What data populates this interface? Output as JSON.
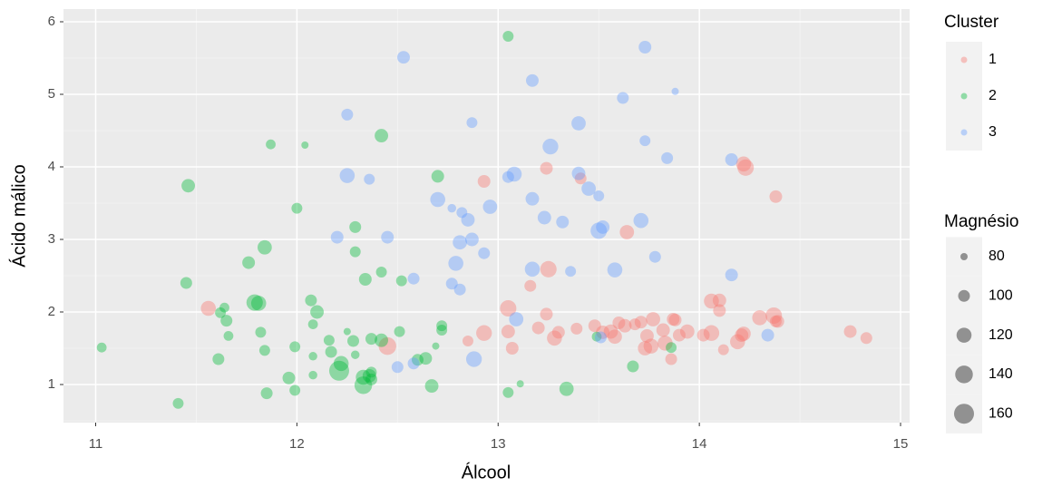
{
  "chart_data": {
    "type": "scatter",
    "xlabel": "Álcool",
    "ylabel": "Ácido málico",
    "xlim": [
      10.84,
      15.045
    ],
    "ylim": [
      0.475,
      6.175
    ],
    "xticks": [
      11,
      12,
      13,
      14,
      15
    ],
    "yticks": [
      1,
      2,
      3,
      4,
      5,
      6
    ],
    "grid": true,
    "opacity": 0.4,
    "legend_title": "Cluster",
    "size_legend": {
      "title": "Magnésio",
      "values": [
        80,
        100,
        120,
        140,
        160
      ]
    },
    "series": [
      {
        "name": "1",
        "color": "#F8766D",
        "x": [
          12.93,
          13.24,
          13.41,
          14.22,
          14.23,
          14.38,
          13.64,
          13.25,
          13.16,
          13.05,
          13.05,
          12.93,
          13.07,
          12.85,
          13.2,
          13.24,
          13.28,
          13.3,
          13.39,
          13.48,
          13.52,
          13.56,
          13.58,
          13.6,
          13.63,
          13.68,
          13.71,
          13.73,
          13.74,
          13.76,
          13.77,
          13.82,
          13.83,
          13.86,
          13.87,
          13.88,
          13.9,
          13.94,
          14.02,
          14.06,
          14.06,
          14.1,
          14.1,
          14.12,
          14.19,
          14.21,
          14.22,
          14.3,
          14.37,
          14.38,
          14.39,
          14.75,
          14.83,
          11.56,
          12.45
        ],
        "y": [
          3.8,
          3.98,
          3.84,
          4.04,
          3.99,
          3.59,
          3.1,
          2.59,
          2.36,
          2.05,
          1.73,
          1.71,
          1.5,
          1.6,
          1.78,
          1.97,
          1.64,
          1.72,
          1.77,
          1.81,
          1.72,
          1.73,
          1.66,
          1.85,
          1.81,
          1.83,
          1.86,
          1.5,
          1.67,
          1.53,
          1.9,
          1.75,
          1.57,
          1.35,
          1.9,
          1.89,
          1.68,
          1.73,
          1.68,
          1.71,
          2.15,
          2.16,
          2.02,
          1.48,
          1.59,
          1.68,
          1.7,
          1.92,
          1.95,
          1.87,
          1.87,
          1.73,
          1.64,
          2.05,
          1.53
        ],
        "size": [
          105,
          105,
          100,
          120,
          130,
          105,
          115,
          130,
          100,
          130,
          110,
          125,
          105,
          95,
          105,
          105,
          120,
          105,
          100,
          105,
          110,
          115,
          115,
          105,
          110,
          100,
          105,
          115,
          110,
          120,
          115,
          110,
          120,
          100,
          105,
          105,
          105,
          115,
          105,
          125,
          120,
          110,
          105,
          95,
          120,
          110,
          115,
          120,
          130,
          100,
          105,
          105,
          100,
          120,
          140
        ]
      },
      {
        "name": "2",
        "color": "#00BA38",
        "x": [
          11.03,
          11.41,
          11.45,
          11.46,
          11.61,
          11.62,
          11.64,
          11.65,
          11.66,
          11.76,
          11.79,
          11.81,
          11.82,
          11.84,
          11.84,
          11.85,
          11.87,
          11.96,
          11.99,
          11.99,
          12.0,
          12.04,
          12.07,
          12.08,
          12.08,
          12.08,
          12.1,
          12.16,
          12.17,
          12.21,
          12.22,
          12.25,
          12.28,
          12.29,
          12.29,
          12.29,
          12.33,
          12.33,
          12.34,
          12.36,
          12.37,
          12.37,
          12.37,
          12.42,
          12.42,
          12.42,
          12.51,
          12.52,
          12.6,
          12.64,
          12.67,
          12.69,
          12.7,
          12.72,
          12.72,
          13.05,
          13.05,
          13.11,
          13.34,
          13.49,
          13.67,
          13.86
        ],
        "y": [
          1.51,
          0.74,
          2.4,
          3.74,
          1.35,
          1.99,
          2.06,
          1.88,
          1.67,
          2.68,
          2.13,
          2.12,
          1.72,
          2.89,
          1.47,
          0.88,
          4.31,
          1.09,
          1.52,
          0.92,
          3.43,
          4.3,
          2.16,
          1.39,
          1.13,
          1.83,
          2.0,
          1.61,
          1.45,
          1.19,
          1.29,
          1.73,
          1.6,
          3.17,
          2.83,
          1.41,
          0.99,
          1.1,
          2.45,
          1.12,
          1.63,
          1.07,
          1.17,
          4.43,
          2.55,
          1.61,
          1.73,
          2.43,
          1.34,
          1.36,
          0.98,
          1.53,
          3.87,
          1.75,
          1.81,
          5.8,
          0.89,
          1.01,
          0.94,
          1.66,
          1.25,
          1.51
        ],
        "size": [
          90,
          95,
          100,
          110,
          100,
          95,
          90,
          100,
          90,
          105,
          130,
          120,
          95,
          115,
          95,
          100,
          90,
          105,
          95,
          95,
          95,
          80,
          100,
          85,
          85,
          90,
          110,
          95,
          100,
          160,
          120,
          80,
          100,
          100,
          95,
          85,
          140,
          120,
          105,
          110,
          100,
          100,
          95,
          110,
          95,
          110,
          95,
          95,
          100,
          105,
          110,
          80,
          105,
          95,
          95,
          95,
          95,
          80,
          115,
          90,
          100,
          95
        ]
      },
      {
        "name": "3",
        "color": "#619CFF",
        "x": [
          12.25,
          12.53,
          12.87,
          13.17,
          13.73,
          13.88,
          13.62,
          13.4,
          13.26,
          13.73,
          13.84,
          14.16,
          13.08,
          13.05,
          13.4,
          13.45,
          13.5,
          12.25,
          12.36,
          12.7,
          12.77,
          12.82,
          12.85,
          12.96,
          13.17,
          13.23,
          13.32,
          13.71,
          13.52,
          13.5,
          12.2,
          12.45,
          12.81,
          12.87,
          12.93,
          12.79,
          12.77,
          12.81,
          12.58,
          13.17,
          13.36,
          13.58,
          13.78,
          14.16,
          13.09,
          12.88,
          12.5,
          12.58,
          14.34,
          13.51
        ],
        "y": [
          4.72,
          5.51,
          4.61,
          5.19,
          5.65,
          5.04,
          4.95,
          4.6,
          4.28,
          4.36,
          4.12,
          4.1,
          3.9,
          3.86,
          3.91,
          3.7,
          3.6,
          3.88,
          3.83,
          3.55,
          3.43,
          3.37,
          3.27,
          3.45,
          3.56,
          3.3,
          3.24,
          3.26,
          3.17,
          3.12,
          3.03,
          3.03,
          2.96,
          3.0,
          2.81,
          2.67,
          2.39,
          2.31,
          2.46,
          2.59,
          2.56,
          2.58,
          2.76,
          2.51,
          1.9,
          1.35,
          1.24,
          1.29,
          1.68,
          1.65
        ],
        "size": [
          100,
          105,
          95,
          105,
          105,
          80,
          100,
          115,
          125,
          95,
          100,
          105,
          120,
          100,
          110,
          115,
          95,
          120,
          95,
          120,
          85,
          95,
          110,
          115,
          110,
          110,
          105,
          120,
          110,
          130,
          105,
          105,
          115,
          110,
          100,
          120,
          100,
          100,
          100,
          120,
          95,
          120,
          100,
          105,
          115,
          125,
          100,
          100,
          105,
          100
        ]
      }
    ]
  }
}
